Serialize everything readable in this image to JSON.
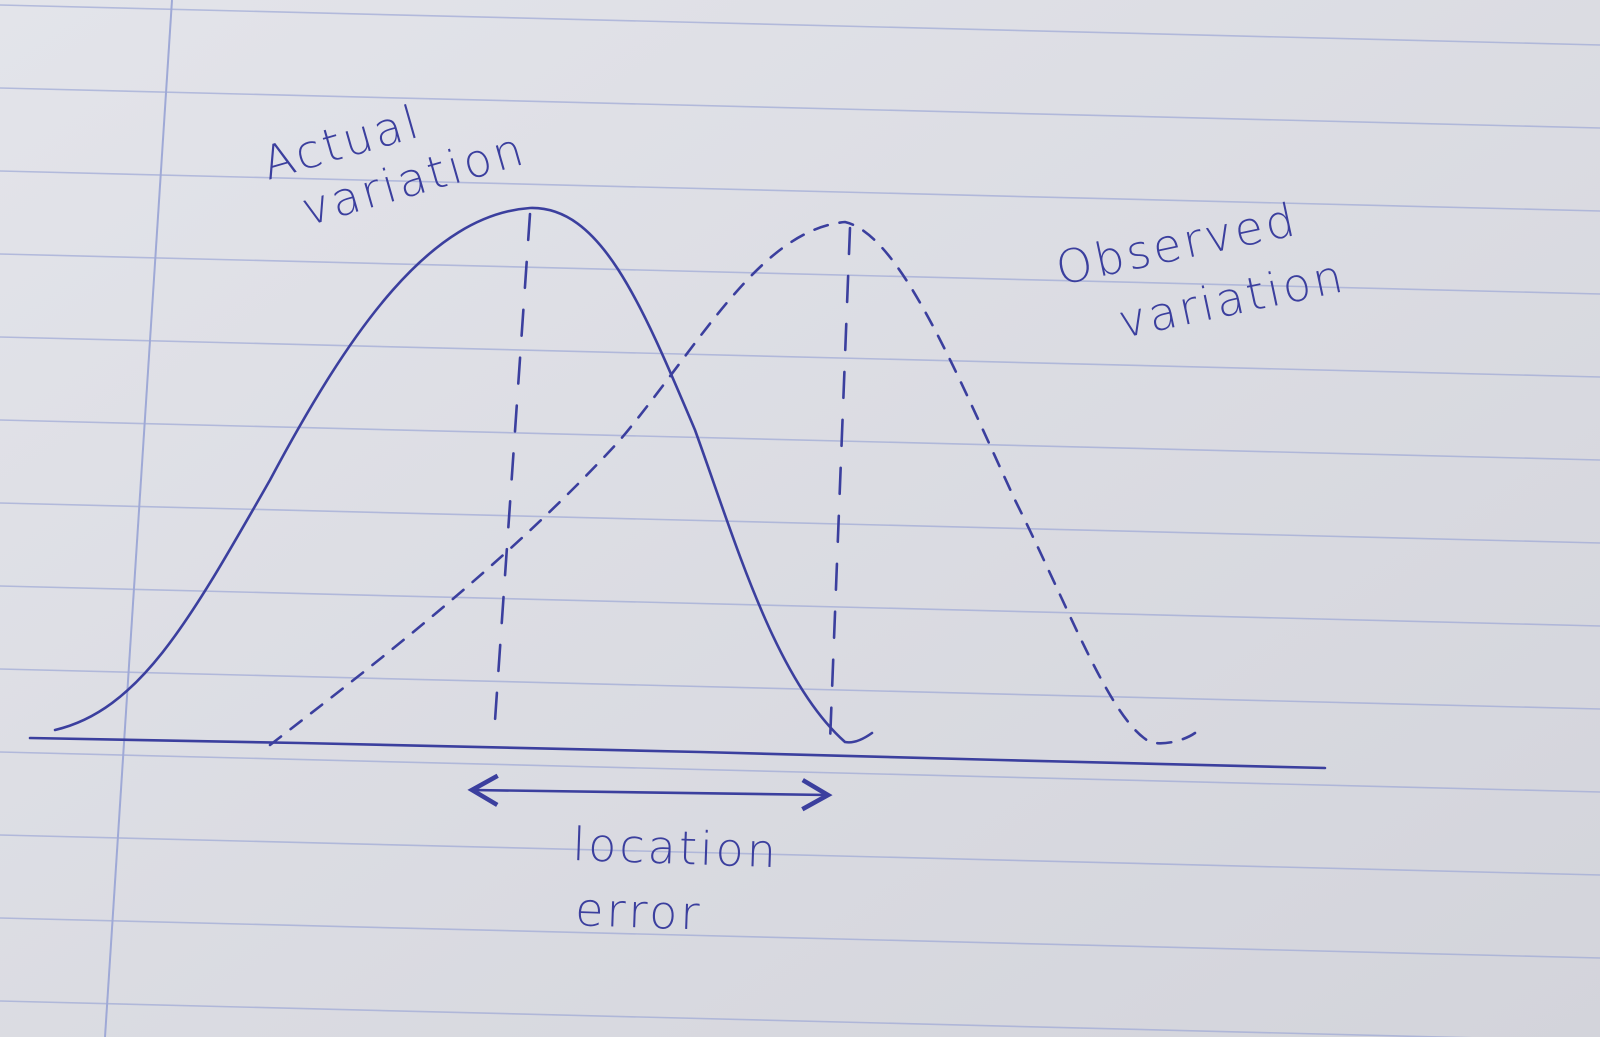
{
  "diagram": {
    "labels": {
      "actual_line1": "Actual",
      "actual_line2": "variation",
      "observed_line1": "Observed",
      "observed_line2": "variation",
      "error_line1": "location",
      "error_line2": "error"
    },
    "colors": {
      "ink": "#3b3f9e",
      "paper": "#dcdde3",
      "rule_lines": "#9fa9d6"
    },
    "curves": [
      {
        "name": "actual-variation",
        "style": "solid"
      },
      {
        "name": "observed-variation",
        "style": "dashed"
      }
    ]
  }
}
